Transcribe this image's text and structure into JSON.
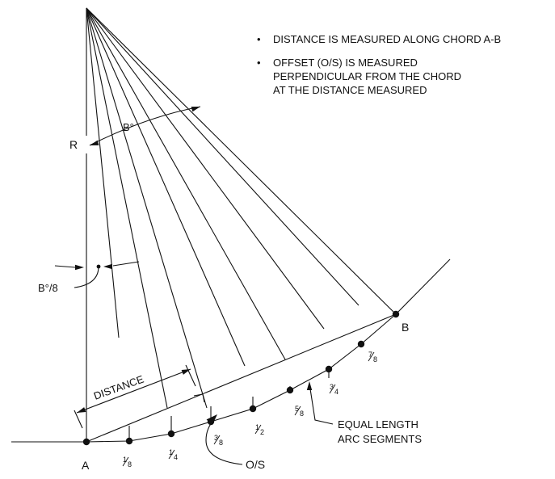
{
  "notes": [
    "DISTANCE IS MEASURED ALONG CHORD A-B",
    "OFFSET (O/S) IS MEASURED PERPENDICULAR FROM THE CHORD AT THE DISTANCE MEASURED"
  ],
  "bullet_glyph": "•",
  "labels": {
    "A": "A",
    "B": "B",
    "R": "R",
    "angle": "B°",
    "angle_eighth": "B°/8",
    "distance": "DISTANCE",
    "offset": "O/S",
    "equal_segments_line1": "EQUAL LENGTH",
    "equal_segments_line2": "ARC SEGMENTS"
  },
  "fractions": [
    {
      "num": "1",
      "den": "8"
    },
    {
      "num": "1",
      "den": "4"
    },
    {
      "num": "3",
      "den": "8"
    },
    {
      "num": "1",
      "den": "2"
    },
    {
      "num": "5",
      "den": "8"
    },
    {
      "num": "3",
      "den": "4"
    },
    {
      "num": "7",
      "den": "8"
    }
  ],
  "colors": {
    "ink": "#111111",
    "background": "#ffffff"
  }
}
